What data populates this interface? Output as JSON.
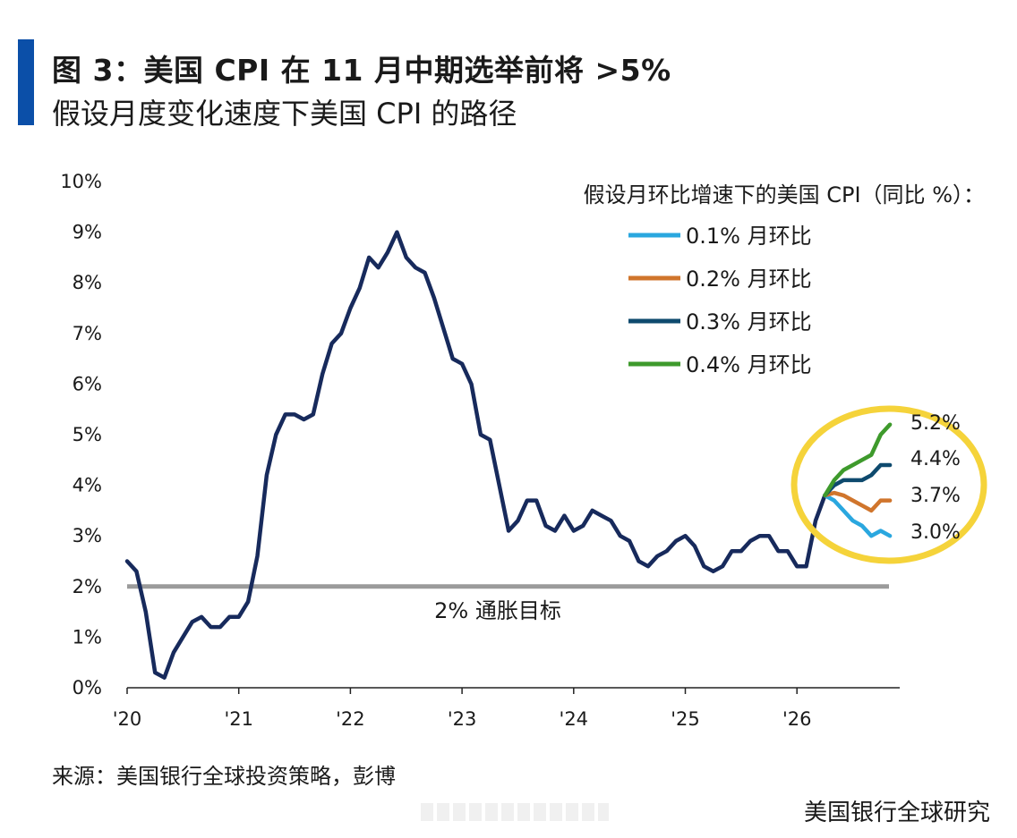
{
  "header": {
    "title": "图 3：美国 CPI 在 11 月中期选举前将 >5%",
    "subtitle": "假设月度变化速度下美国 CPI 的路径"
  },
  "footer": {
    "source": "来源：美国银行全球投资策略，彭博",
    "brand": "美国银行全球研究"
  },
  "colors": {
    "accent_bar": "#0b4fa8",
    "history": "#172a5c",
    "target": "#9b9b9b",
    "highlight": "#f5d33a"
  },
  "chart_data": {
    "type": "line",
    "legend_title": "假设月环比增速下的美国 CPI（同比 %）：",
    "legend_position": "top-right",
    "grid": false,
    "x_ticks": [
      "'20",
      "'21",
      "'22",
      "'23",
      "'24",
      "'25",
      "'26"
    ],
    "y_ticks": [
      "0%",
      "1%",
      "2%",
      "3%",
      "4%",
      "5%",
      "6%",
      "7%",
      "8%",
      "9%",
      "10%"
    ],
    "ylim": [
      0,
      10
    ],
    "xlim": [
      "2020-01",
      "2026-11"
    ],
    "reference_line": {
      "value": 2.0,
      "label": "2% 通胀目标"
    },
    "history": {
      "color": "#172a5c",
      "x": [
        "2020-01",
        "2020-02",
        "2020-03",
        "2020-04",
        "2020-05",
        "2020-06",
        "2020-07",
        "2020-08",
        "2020-09",
        "2020-10",
        "2020-11",
        "2020-12",
        "2021-01",
        "2021-02",
        "2021-03",
        "2021-04",
        "2021-05",
        "2021-06",
        "2021-07",
        "2021-08",
        "2021-09",
        "2021-10",
        "2021-11",
        "2021-12",
        "2022-01",
        "2022-02",
        "2022-03",
        "2022-04",
        "2022-05",
        "2022-06",
        "2022-07",
        "2022-08",
        "2022-09",
        "2022-10",
        "2022-11",
        "2022-12",
        "2023-01",
        "2023-02",
        "2023-03",
        "2023-04",
        "2023-05",
        "2023-06",
        "2023-07",
        "2023-08",
        "2023-09",
        "2023-10",
        "2023-11",
        "2023-12",
        "2024-01",
        "2024-02",
        "2024-03",
        "2024-04",
        "2024-05",
        "2024-06",
        "2024-07",
        "2024-08",
        "2024-09",
        "2024-10",
        "2024-11",
        "2024-12",
        "2025-01",
        "2025-02",
        "2025-03",
        "2025-04",
        "2025-05",
        "2025-06",
        "2025-07",
        "2025-08",
        "2025-09",
        "2025-10",
        "2025-11",
        "2025-12",
        "2026-01",
        "2026-02",
        "2026-03",
        "2026-04"
      ],
      "y": [
        2.5,
        2.3,
        1.5,
        0.3,
        0.2,
        0.7,
        1.0,
        1.3,
        1.4,
        1.2,
        1.2,
        1.4,
        1.4,
        1.7,
        2.6,
        4.2,
        5.0,
        5.4,
        5.4,
        5.3,
        5.4,
        6.2,
        6.8,
        7.0,
        7.5,
        7.9,
        8.5,
        8.3,
        8.6,
        9.0,
        8.5,
        8.3,
        8.2,
        7.7,
        7.1,
        6.5,
        6.4,
        6.0,
        5.0,
        4.9,
        4.0,
        3.1,
        3.3,
        3.7,
        3.7,
        3.2,
        3.1,
        3.4,
        3.1,
        3.2,
        3.5,
        3.4,
        3.3,
        3.0,
        2.9,
        2.5,
        2.4,
        2.6,
        2.7,
        2.9,
        3.0,
        2.8,
        2.4,
        2.3,
        2.4,
        2.7,
        2.7,
        2.9,
        3.0,
        3.0,
        2.7,
        2.7,
        2.4,
        2.4,
        3.3,
        3.8
      ]
    },
    "series": [
      {
        "name": "0.1% 月环比",
        "color": "#2aa7df",
        "end_label": "3.0%",
        "x": [
          "2026-04",
          "2026-05",
          "2026-06",
          "2026-07",
          "2026-08",
          "2026-09",
          "2026-10",
          "2026-11"
        ],
        "y": [
          3.8,
          3.7,
          3.5,
          3.3,
          3.2,
          3.0,
          3.1,
          3.0
        ]
      },
      {
        "name": "0.2% 月环比",
        "color": "#d0752c",
        "end_label": "3.7%",
        "x": [
          "2026-04",
          "2026-05",
          "2026-06",
          "2026-07",
          "2026-08",
          "2026-09",
          "2026-10",
          "2026-11"
        ],
        "y": [
          3.8,
          3.85,
          3.8,
          3.7,
          3.6,
          3.5,
          3.7,
          3.7
        ]
      },
      {
        "name": "0.3% 月环比",
        "color": "#0e4a6e",
        "end_label": "4.4%",
        "x": [
          "2026-04",
          "2026-05",
          "2026-06",
          "2026-07",
          "2026-08",
          "2026-09",
          "2026-10",
          "2026-11"
        ],
        "y": [
          3.8,
          4.0,
          4.1,
          4.1,
          4.1,
          4.2,
          4.4,
          4.4
        ]
      },
      {
        "name": "0.4% 月环比",
        "color": "#3e9a2c",
        "end_label": "5.2%",
        "x": [
          "2026-04",
          "2026-05",
          "2026-06",
          "2026-07",
          "2026-08",
          "2026-09",
          "2026-10",
          "2026-11"
        ],
        "y": [
          3.8,
          4.1,
          4.3,
          4.4,
          4.5,
          4.6,
          5.0,
          5.2
        ]
      }
    ]
  }
}
